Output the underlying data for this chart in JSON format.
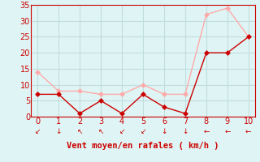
{
  "x": [
    0,
    1,
    2,
    3,
    4,
    5,
    6,
    7,
    8,
    9,
    10
  ],
  "y_moyen": [
    7,
    7,
    1,
    5,
    1,
    7,
    3,
    1,
    20,
    20,
    25
  ],
  "y_rafales": [
    14,
    8,
    8,
    7,
    7,
    10,
    7,
    7,
    32,
    34,
    25
  ],
  "color_moyen": "#cc0000",
  "color_rafales": "#ffaaaa",
  "bg_color": "#dff4f4",
  "grid_color": "#c0dede",
  "axis_color": "#cc0000",
  "xlabel": "Vent moyen/en rafales ( km/h )",
  "xlim": [
    -0.3,
    10.3
  ],
  "ylim": [
    0,
    35
  ],
  "yticks": [
    0,
    5,
    10,
    15,
    20,
    25,
    30,
    35
  ],
  "xticks": [
    0,
    1,
    2,
    3,
    4,
    5,
    6,
    7,
    8,
    9,
    10
  ],
  "arrow_chars": [
    "↙",
    "↓",
    "↖",
    "↖",
    "↙",
    "↙",
    "↓",
    "↓",
    "←",
    "←",
    "←"
  ],
  "markersize": 3,
  "linewidth": 1.0,
  "xlabel_fontsize": 7.5,
  "tick_fontsize": 7,
  "arrow_fontsize": 6.5
}
